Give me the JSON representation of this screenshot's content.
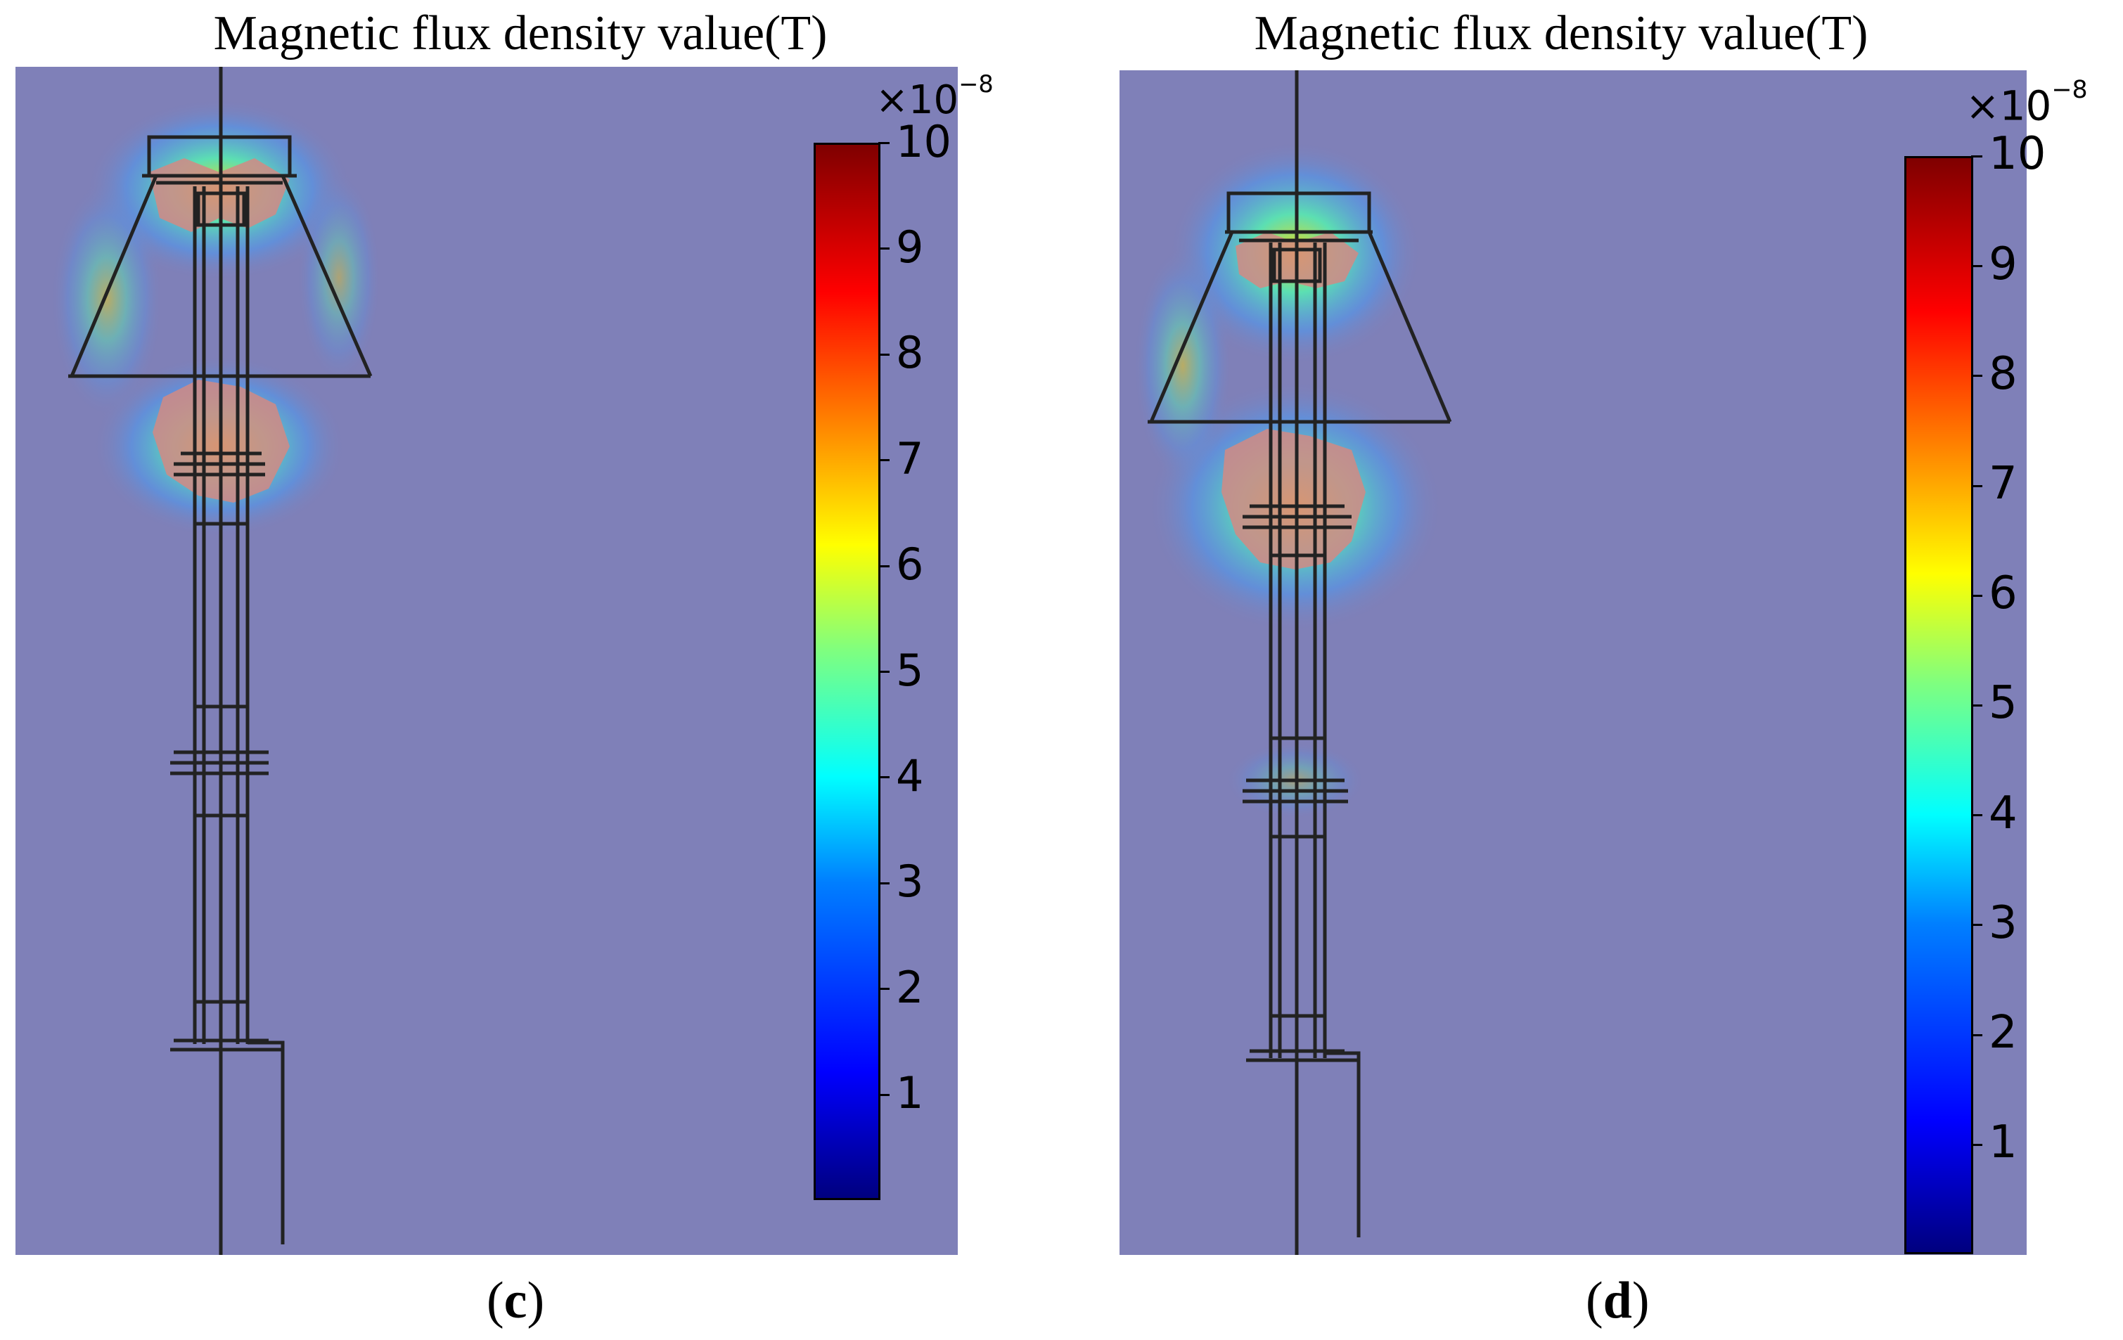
{
  "panels": [
    {
      "title": "Magnetic flux density value(T)",
      "label_open": "(",
      "label_letter": "c",
      "label_close": ")",
      "colorbar": {
        "multiplier_base": "×10",
        "multiplier_exp": "−8",
        "ticks": [
          "1",
          "2",
          "3",
          "4",
          "5",
          "6",
          "7",
          "8",
          "9",
          "10"
        ],
        "range": [
          0,
          10
        ],
        "colormap": "jet"
      }
    },
    {
      "title": "Magnetic flux density value(T)",
      "label_open": "(",
      "label_letter": "d",
      "label_close": ")",
      "colorbar": {
        "multiplier_base": "×10",
        "multiplier_exp": "−8",
        "ticks": [
          "1",
          "2",
          "3",
          "4",
          "5",
          "6",
          "7",
          "8",
          "9",
          "10"
        ],
        "range": [
          0,
          10
        ],
        "colormap": "jet"
      }
    }
  ],
  "colors": {
    "background_field": "#7f80b8",
    "structure_line": "#222222",
    "hotspot": "#d28a84"
  }
}
